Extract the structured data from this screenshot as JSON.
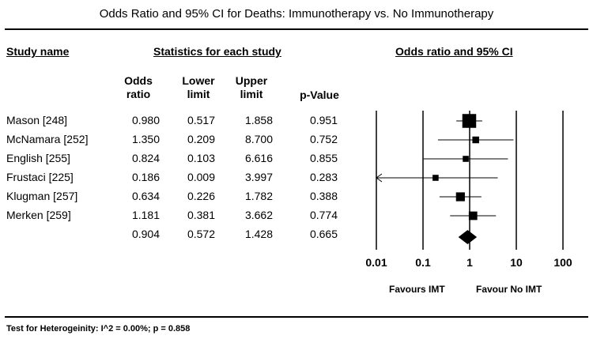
{
  "title": "Odds Ratio and 95% CI for Deaths: Immunotherapy vs. No Immunotherapy",
  "headers": {
    "study_name": "Study name",
    "statistics": "Statistics for each study",
    "plot": "Odds ratio and 95% CI",
    "columns": [
      "Odds ratio",
      "Lower limit",
      "Upper limit",
      "p-Value"
    ]
  },
  "studies": [
    {
      "name": "Mason [248]",
      "or": "0.980",
      "lower": "0.517",
      "upper": "1.858",
      "p": "0.951"
    },
    {
      "name": "McNamara [252]",
      "or": "1.350",
      "lower": "0.209",
      "upper": "8.700",
      "p": "0.752"
    },
    {
      "name": "English [255]",
      "or": "0.824",
      "lower": "0.103",
      "upper": "6.616",
      "p": "0.855"
    },
    {
      "name": "Frustaci [225]",
      "or": "0.186",
      "lower": "0.009",
      "upper": "3.997",
      "p": "0.283"
    },
    {
      "name": "Klugman [257]",
      "or": "0.634",
      "lower": "0.226",
      "upper": "1.782",
      "p": "0.388"
    },
    {
      "name": "Merken [259]",
      "or": "1.181",
      "lower": "0.381",
      "upper": "3.662",
      "p": "0.774"
    }
  ],
  "summary": {
    "name": "",
    "or": "0.904",
    "lower": "0.572",
    "upper": "1.428",
    "p": "0.665"
  },
  "axis_ticks": [
    "0.01",
    "0.1",
    "1",
    "10",
    "100"
  ],
  "favours_left": "Favours IMT",
  "favours_right": "Favour No IMT",
  "footer": "Test for Heterogeinity: I^2 = 0.00%; p = 0.858",
  "chart_data": {
    "type": "forest",
    "x_scale": "log",
    "xlim": [
      0.01,
      100
    ],
    "points": [
      {
        "label": "Mason [248]",
        "or": 0.98,
        "lower": 0.517,
        "upper": 1.858,
        "weight": 3.0
      },
      {
        "label": "McNamara [252]",
        "or": 1.35,
        "lower": 0.209,
        "upper": 8.7,
        "weight": 1.0
      },
      {
        "label": "English [255]",
        "or": 0.824,
        "lower": 0.103,
        "upper": 6.616,
        "weight": 0.8
      },
      {
        "label": "Frustaci [225]",
        "or": 0.186,
        "lower": 0.009,
        "upper": 3.997,
        "weight": 0.8
      },
      {
        "label": "Klugman [257]",
        "or": 0.634,
        "lower": 0.226,
        "upper": 1.782,
        "weight": 1.6
      },
      {
        "label": "Merken [259]",
        "or": 1.181,
        "lower": 0.381,
        "upper": 3.662,
        "weight": 1.5
      }
    ],
    "summary": {
      "or": 0.904,
      "lower": 0.572,
      "upper": 1.428
    }
  }
}
